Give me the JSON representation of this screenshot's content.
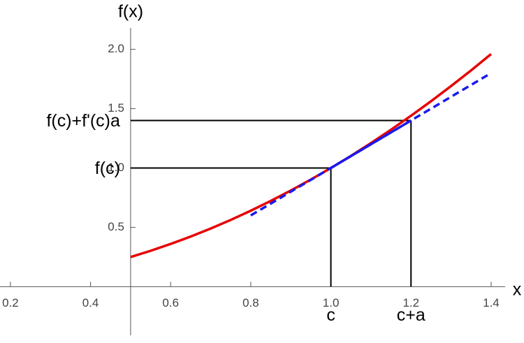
{
  "chart_data": {
    "type": "line",
    "x_label": "x",
    "y_label": "f(x)",
    "xlim": [
      0.174,
      1.435
    ],
    "ylim": [
      -0.41,
      2.18
    ],
    "xticks": [
      0.2,
      0.4,
      0.6,
      0.8,
      {
        "value": 1,
        "label": "1.0"
      },
      1.2,
      1.4
    ],
    "yticks": [
      0.5,
      {
        "value": 1,
        "label": "1.0"
      },
      1.5,
      {
        "value": 2,
        "label": "2.0"
      }
    ],
    "axis_origin": [
      0.5,
      0
    ],
    "series": [
      {
        "color": "#e60000",
        "dash": false,
        "x": [
          0.5,
          0.55,
          0.6,
          0.65,
          0.7,
          0.75,
          0.8,
          0.85,
          0.9,
          0.95,
          1.0,
          1.05,
          1.1,
          1.15,
          1.2,
          1.25,
          1.3,
          1.35,
          1.4
        ],
        "values": [
          0.25,
          0.3025,
          0.36,
          0.4225,
          0.49,
          0.5625,
          0.64,
          0.7225,
          0.81,
          0.9025,
          1.0,
          1.1025,
          1.21,
          1.3225,
          1.44,
          1.5625,
          1.69,
          1.8225,
          1.96
        ]
      },
      {
        "color": "#1a1aee",
        "dash": true,
        "x": [
          0.8,
          1.4
        ],
        "values": [
          0.6,
          1.8
        ]
      },
      {
        "color": "#1a1aee",
        "dash": false,
        "x": [
          1.0,
          1.2
        ],
        "values": [
          1.0,
          1.4
        ]
      }
    ],
    "guides": [
      {
        "x": 1.0,
        "y": 1.0,
        "y_text": "f(c)",
        "x_text": "c"
      },
      {
        "x": 1.2,
        "y": 1.4,
        "y_text": "f(c)+f'(c)a",
        "x_text": "c+a"
      }
    ]
  }
}
